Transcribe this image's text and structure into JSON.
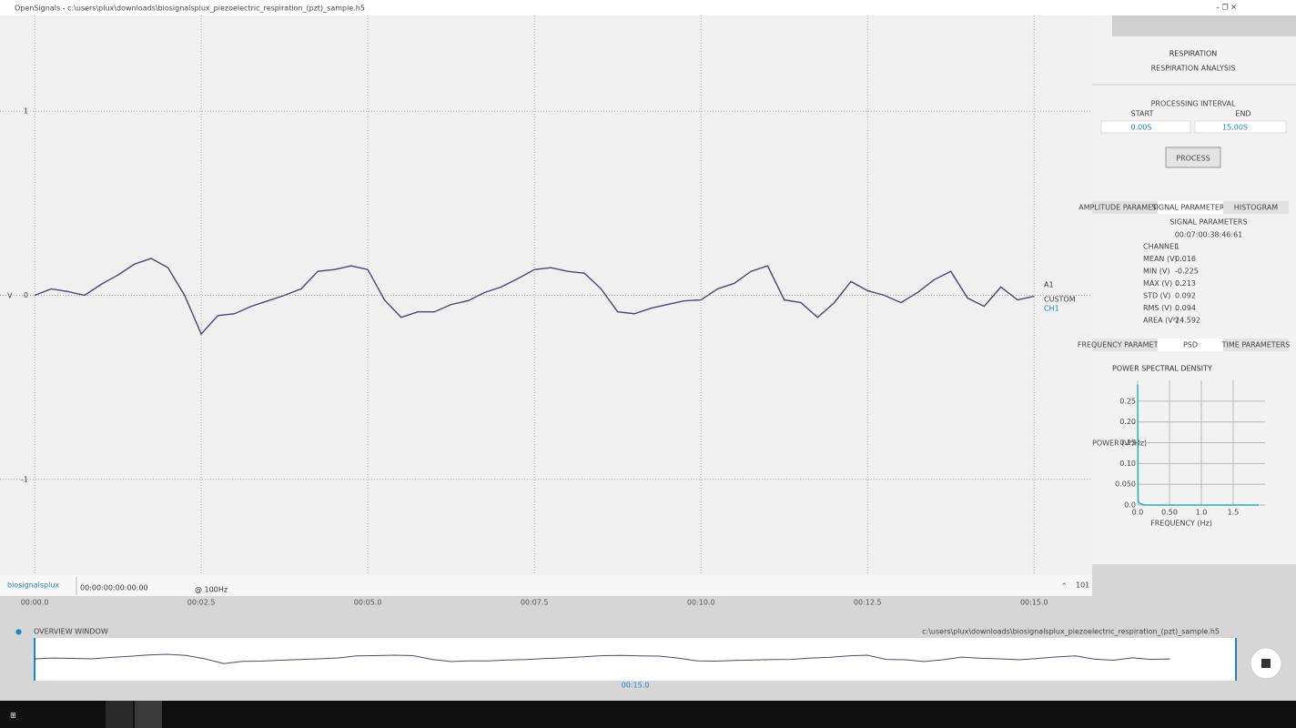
{
  "window": {
    "title": "OpenSignals - c:\\users\\plux\\downloads\\biosignalsplux_piezoelectric_respiration_(pzt)_sample.h5"
  },
  "channel": {
    "name": "A1",
    "type": "CUSTOM",
    "id": "CH1"
  },
  "footer": {
    "logo": "biosignalsplux",
    "clock": "00:00:00:00:00:00",
    "rate": "@ 100Hz",
    "button": "101"
  },
  "overview": {
    "label": "OVERVIEW WINDOW",
    "file": "c:\\users\\plux\\downloads\\biosignalsplux_piezoelectric_respiration_(pzt)_sample.h5",
    "time": "00:15.0"
  },
  "panel": {
    "title": "RESPIRATION",
    "subtitle": "RESPIRATION ANALYSIS",
    "interval": "PROCESSING INTERVAL",
    "start_label": "START",
    "end_label": "END",
    "start": "0.00S",
    "end": "15.00S",
    "button": "PROCESS",
    "tabs1": [
      "AMPLITUDE PARAMETERS",
      "SIGNAL PARAMETERS",
      "HISTOGRAM"
    ],
    "section": "SIGNAL PARAMETERS",
    "timestamp": "00:07:00:38:46:61",
    "params": [
      [
        "CHANNEL",
        1
      ],
      [
        "MEAN (V)",
        0.016
      ],
      [
        "MIN (V)",
        -0.225
      ],
      [
        "MAX (V)",
        0.213
      ],
      [
        "STD (V)",
        0.092
      ],
      [
        "RMS (V)",
        0.094
      ],
      [
        "AREA (V²)",
        24.592
      ]
    ],
    "tabs2": [
      "FREQUENCY PARAMETERS",
      "PSD",
      "TIME PARAMETERS"
    ]
  },
  "chart_data": [
    {
      "type": "line",
      "y_label": "V",
      "xlim": [
        -0.52,
        15.87
      ],
      "ylim": [
        -1.52,
        1.52
      ],
      "grid": true,
      "xticks": [
        {
          "value": 0,
          "label": "00:00.0"
        },
        {
          "value": 2.5,
          "label": "00:02.5"
        },
        {
          "value": 5,
          "label": "00:05.0"
        },
        {
          "value": 7.5,
          "label": "00:07.5"
        },
        {
          "value": 10,
          "label": "00:10.0"
        },
        {
          "value": 12.5,
          "label": "00:12.5"
        },
        {
          "value": 15,
          "label": "00:15.0"
        }
      ],
      "yticks": [
        1,
        0,
        -1
      ],
      "x": [
        0,
        0.25,
        0.5,
        0.75,
        1,
        1.25,
        1.5,
        1.75,
        2,
        2.25,
        2.5,
        2.75,
        3,
        3.25,
        3.5,
        3.75,
        4,
        4.25,
        4.5,
        4.75,
        5,
        5.25,
        5.5,
        5.75,
        6,
        6.25,
        6.5,
        6.75,
        7,
        7.25,
        7.5,
        7.75,
        8,
        8.25,
        8.5,
        8.75,
        9,
        9.25,
        9.5,
        9.75,
        10,
        10.25,
        10.5,
        10.75,
        11,
        11.25,
        11.5,
        11.75,
        12,
        12.25,
        12.5,
        12.75,
        13,
        13.25,
        13.5,
        13.75,
        14,
        14.25,
        14.5,
        14.75,
        15
      ],
      "series": [
        {
          "color": "#4a4a6e",
          "values": [
            0,
            0.035,
            0.02,
            0,
            0.06,
            0.11,
            0.17,
            0.2,
            0.15,
            0,
            -0.21,
            -0.11,
            -0.1,
            -0.06,
            -0.03,
            0,
            0.035,
            0.13,
            0.14,
            0.16,
            0.14,
            -0.025,
            -0.12,
            -0.09,
            -0.09,
            -0.05,
            -0.03,
            0.015,
            0.045,
            0.09,
            0.14,
            0.15,
            0.13,
            0.12,
            0.035,
            -0.09,
            -0.1,
            -0.07,
            -0.05,
            -0.03,
            -0.025,
            0.035,
            0.065,
            0.13,
            0.16,
            -0.025,
            -0.04,
            -0.12,
            -0.04,
            0.075,
            0.025,
            0,
            -0.04,
            0.015,
            0.085,
            0.13,
            -0.015,
            -0.06,
            0.045,
            -0.025,
            -0.005
          ]
        }
      ]
    },
    {
      "type": "line",
      "title": "POWER SPECTRAL DENSITY",
      "x_label": "FREQUENCY (Hz)",
      "y_label": "POWER (V²/Hz)",
      "xlim": [
        0,
        2
      ],
      "ylim": [
        0,
        0.3
      ],
      "grid": true,
      "xticks": [
        {
          "value": 0,
          "label": "0.0"
        },
        {
          "value": 0.5,
          "label": "0.50"
        },
        {
          "value": 1,
          "label": "1.0"
        },
        1.5
      ],
      "yticks": [
        {
          "value": 0,
          "label": "0.0"
        },
        {
          "value": 0.05,
          "label": "0.050"
        },
        {
          "value": 0.1,
          "label": "0.10"
        },
        0.15,
        {
          "value": 0.2,
          "label": "0.20"
        },
        0.25
      ],
      "x": [
        0,
        0.007,
        0.02,
        0.1,
        1.9
      ],
      "series": [
        {
          "color": "#2bb0b0",
          "values": [
            0.29,
            0.01,
            0.005,
            0,
            0
          ]
        }
      ]
    }
  ]
}
